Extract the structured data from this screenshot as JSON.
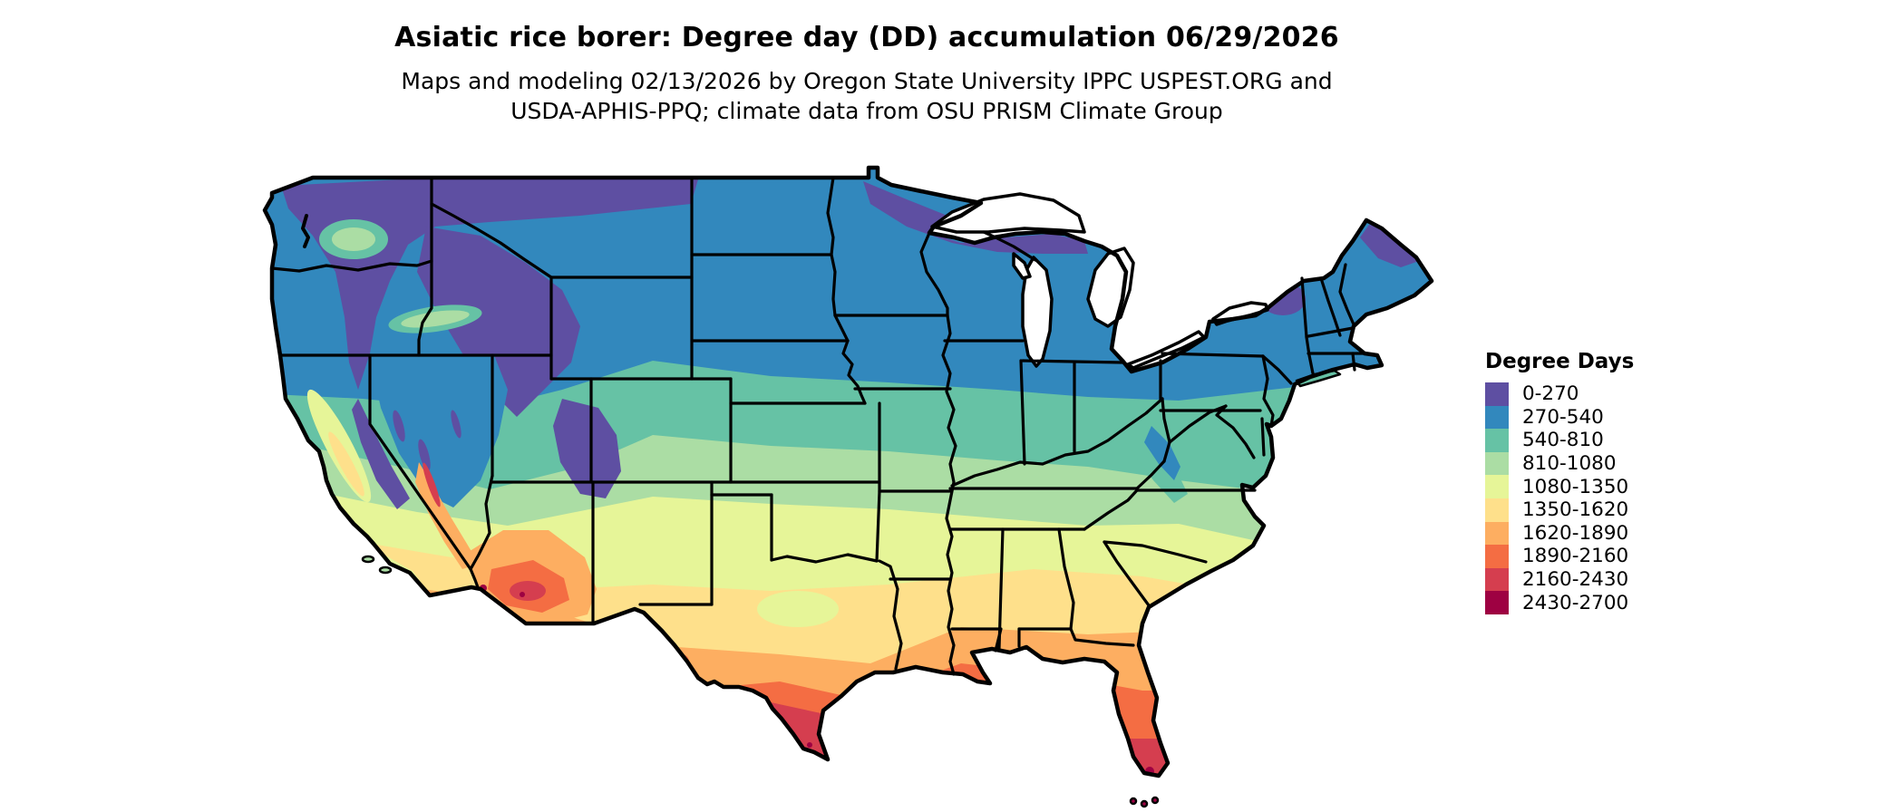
{
  "header": {
    "title": "Asiatic rice borer: Degree day (DD) accumulation 06/29/2026",
    "subtitle_line1": "Maps and modeling 02/13/2026 by Oregon State University IPPC USPEST.ORG and",
    "subtitle_line2": "USDA-APHIS-PPQ; climate data from OSU PRISM Climate Group"
  },
  "legend": {
    "title": "Degree Days",
    "classes": [
      {
        "label": "0-270",
        "color": "#5e4fa2"
      },
      {
        "label": "270-540",
        "color": "#3288bd"
      },
      {
        "label": "540-810",
        "color": "#66c2a5"
      },
      {
        "label": "810-1080",
        "color": "#abdda4"
      },
      {
        "label": "1080-1350",
        "color": "#e6f598"
      },
      {
        "label": "1350-1620",
        "color": "#fee08b"
      },
      {
        "label": "1620-1890",
        "color": "#fdae61"
      },
      {
        "label": "1890-2160",
        "color": "#f46d43"
      },
      {
        "label": "2160-2430",
        "color": "#d53e4f"
      },
      {
        "label": "2430-2700",
        "color": "#9e0142"
      }
    ]
  },
  "map": {
    "region": "Continental United States",
    "border_color": "#000000",
    "water_color": "#ffffff",
    "background_color": "#ffffff"
  }
}
